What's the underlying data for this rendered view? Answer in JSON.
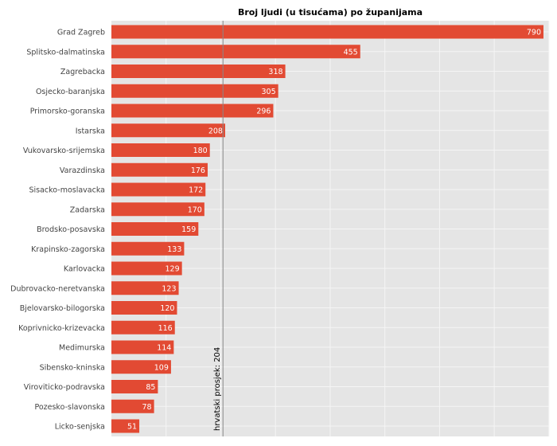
{
  "chart_data": {
    "type": "bar",
    "orientation": "horizontal",
    "title": "Broj ljudi (u tisućama) po županijama",
    "categories": [
      "Grad Zagreb",
      "Splitsko-dalmatinska",
      "Zagrebacka",
      "Osjecko-baranjska",
      "Primorsko-goranska",
      "Istarska",
      "Vukovarsko-srijemska",
      "Varazdinska",
      "Sisacko-moslavacka",
      "Zadarska",
      "Brodsko-posavska",
      "Krapinsko-zagorska",
      "Karlovacka",
      "Dubrovacko-neretvanska",
      "Bjelovarsko-bilogorska",
      "Koprivnicko-krizevacka",
      "Medimurska",
      "Sibensko-kninska",
      "Viroviticko-podravska",
      "Pozesko-slavonska",
      "Licko-senjska"
    ],
    "values": [
      790,
      455,
      318,
      305,
      296,
      208,
      180,
      176,
      172,
      170,
      159,
      133,
      129,
      123,
      120,
      116,
      114,
      109,
      85,
      78,
      51
    ],
    "xlim": [
      0,
      800
    ],
    "grid": true,
    "reference_line": {
      "value": 204,
      "label": "hrvatski prosjek:  204"
    },
    "colors": {
      "bar": "#e24a33",
      "plot_background": "#e5e5e5",
      "grid": "#f5f5f5",
      "reference_line": "#888888"
    }
  }
}
